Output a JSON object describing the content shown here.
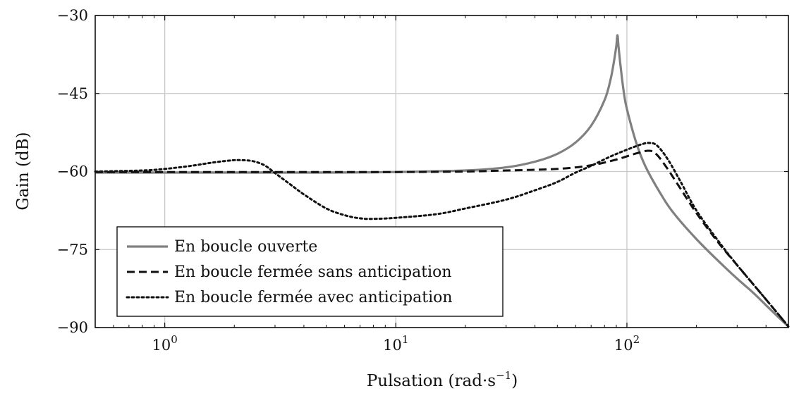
{
  "chart_data": {
    "type": "line",
    "xlabel": "Pulsation (rad·s",
    "xlabel_sup": "−1",
    "xlabel_close": ")",
    "ylabel": "Gain (dB)",
    "x_scale": "log",
    "xlim": [
      0.5,
      500
    ],
    "ylim": [
      -90,
      -30
    ],
    "y_ticks": [
      {
        "value": -30,
        "label": "−30"
      },
      {
        "value": -45,
        "label": "−45"
      },
      {
        "value": -60,
        "label": "−60"
      },
      {
        "value": -75,
        "label": "−75"
      },
      {
        "value": -90,
        "label": "−90"
      }
    ],
    "x_ticks": [
      {
        "value": 1,
        "base": "10",
        "exp": "0"
      },
      {
        "value": 10,
        "base": "10",
        "exp": "1"
      },
      {
        "value": 100,
        "base": "10",
        "exp": "2"
      }
    ],
    "grid": true,
    "legend_position": "bottom-left",
    "series": [
      {
        "name": "En boucle ouverte",
        "color": "#808080",
        "style": "solid",
        "points": [
          [
            0.5,
            -60.2
          ],
          [
            1,
            -60.2
          ],
          [
            2,
            -60.2
          ],
          [
            5,
            -60.2
          ],
          [
            10,
            -60.1
          ],
          [
            20,
            -59.8
          ],
          [
            30,
            -59.2
          ],
          [
            40,
            -58.1
          ],
          [
            50,
            -56.6
          ],
          [
            60,
            -54.4
          ],
          [
            70,
            -51.2
          ],
          [
            80,
            -46.3
          ],
          [
            85,
            -42.3
          ],
          [
            88,
            -38.7
          ],
          [
            90,
            -35.8
          ],
          [
            91,
            -33.8
          ],
          [
            92,
            -36.0
          ],
          [
            94,
            -40.0
          ],
          [
            97,
            -44.8
          ],
          [
            100,
            -48.0
          ],
          [
            110,
            -54.6
          ],
          [
            120,
            -58.9
          ],
          [
            140,
            -64.3
          ],
          [
            160,
            -68.1
          ],
          [
            200,
            -73.0
          ],
          [
            250,
            -77.3
          ],
          [
            300,
            -80.6
          ],
          [
            350,
            -83.2
          ],
          [
            400,
            -85.7
          ],
          [
            450,
            -87.9
          ],
          [
            500,
            -89.8
          ]
        ]
      },
      {
        "name": "En boucle fermée sans anticipation",
        "color": "#111111",
        "style": "dashed",
        "points": [
          [
            0.5,
            -60.1
          ],
          [
            1,
            -60.1
          ],
          [
            2,
            -60.1
          ],
          [
            5,
            -60.1
          ],
          [
            10,
            -60.1
          ],
          [
            20,
            -60.0
          ],
          [
            30,
            -59.8
          ],
          [
            50,
            -59.5
          ],
          [
            70,
            -58.8
          ],
          [
            90,
            -57.7
          ],
          [
            110,
            -56.5
          ],
          [
            125,
            -56.0
          ],
          [
            135,
            -56.8
          ],
          [
            150,
            -59.5
          ],
          [
            170,
            -63.2
          ],
          [
            200,
            -68.0
          ],
          [
            250,
            -73.8
          ],
          [
            300,
            -78.0
          ],
          [
            400,
            -84.6
          ],
          [
            500,
            -89.8
          ]
        ]
      },
      {
        "name": "En boucle fermée avec anticipation",
        "color": "#111111",
        "style": "dotted",
        "points": [
          [
            0.5,
            -60.0
          ],
          [
            0.8,
            -59.8
          ],
          [
            1,
            -59.5
          ],
          [
            1.3,
            -58.9
          ],
          [
            1.6,
            -58.3
          ],
          [
            1.9,
            -57.9
          ],
          [
            2.1,
            -57.8
          ],
          [
            2.4,
            -58.0
          ],
          [
            2.7,
            -58.8
          ],
          [
            3,
            -60.3
          ],
          [
            3.5,
            -62.5
          ],
          [
            4,
            -64.4
          ],
          [
            5,
            -67.1
          ],
          [
            6,
            -68.4
          ],
          [
            7,
            -69.0
          ],
          [
            8,
            -69.1
          ],
          [
            10,
            -68.9
          ],
          [
            15,
            -68.2
          ],
          [
            20,
            -67.1
          ],
          [
            30,
            -65.4
          ],
          [
            40,
            -63.6
          ],
          [
            50,
            -62.0
          ],
          [
            60,
            -60.2
          ],
          [
            70,
            -58.9
          ],
          [
            85,
            -57.1
          ],
          [
            100,
            -55.8
          ],
          [
            115,
            -54.8
          ],
          [
            125,
            -54.5
          ],
          [
            135,
            -55.0
          ],
          [
            150,
            -57.6
          ],
          [
            170,
            -61.8
          ],
          [
            200,
            -67.5
          ],
          [
            250,
            -73.5
          ],
          [
            300,
            -78.0
          ],
          [
            400,
            -84.6
          ],
          [
            500,
            -89.8
          ]
        ]
      }
    ]
  }
}
